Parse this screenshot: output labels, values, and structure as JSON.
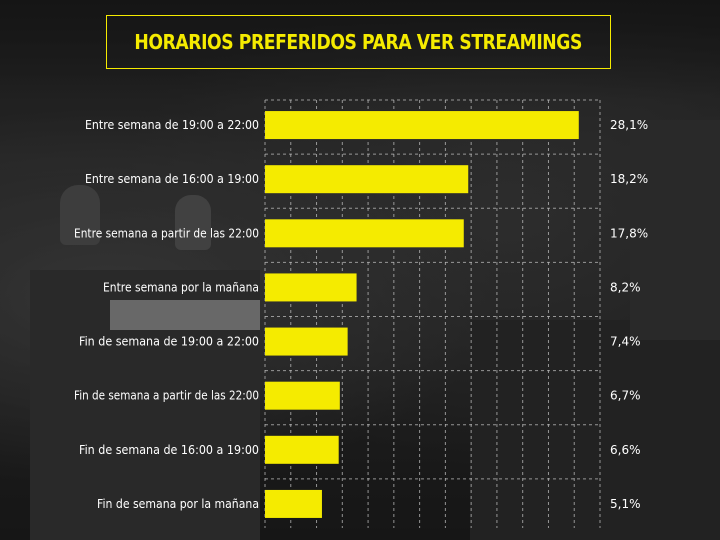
{
  "title": "HORARIOS PREFERIDOS PARA VER STREAMINGS",
  "colors": {
    "bar": "#f5eb00",
    "title": "#f5eb00",
    "grid": "#bdbdbd",
    "text": "#ffffff"
  },
  "chart_data": {
    "type": "bar",
    "orientation": "horizontal",
    "title": "HORARIOS PREFERIDOS PARA VER STREAMINGS",
    "categories": [
      "Entre semana de 19:00 a 22:00",
      "Entre semana de 16:00 a 19:00",
      "Entre semana a partir de las 22:00",
      "Entre semana por la mañana",
      "Fin de semana de 19:00 a 22:00",
      "Fin de semana a partir de las 22:00",
      "Fin de semana de 16:00 a 19:00",
      "Fin de semana por la mañana"
    ],
    "values": [
      28.1,
      18.2,
      17.8,
      8.2,
      7.4,
      6.7,
      6.6,
      5.1
    ],
    "value_labels": [
      "28,1%",
      "18,2%",
      "17,8%",
      "8,2%",
      "7,4%",
      "6,7%",
      "6,6%",
      "5,1%"
    ],
    "xlim": [
      0,
      30
    ],
    "grid": true
  }
}
